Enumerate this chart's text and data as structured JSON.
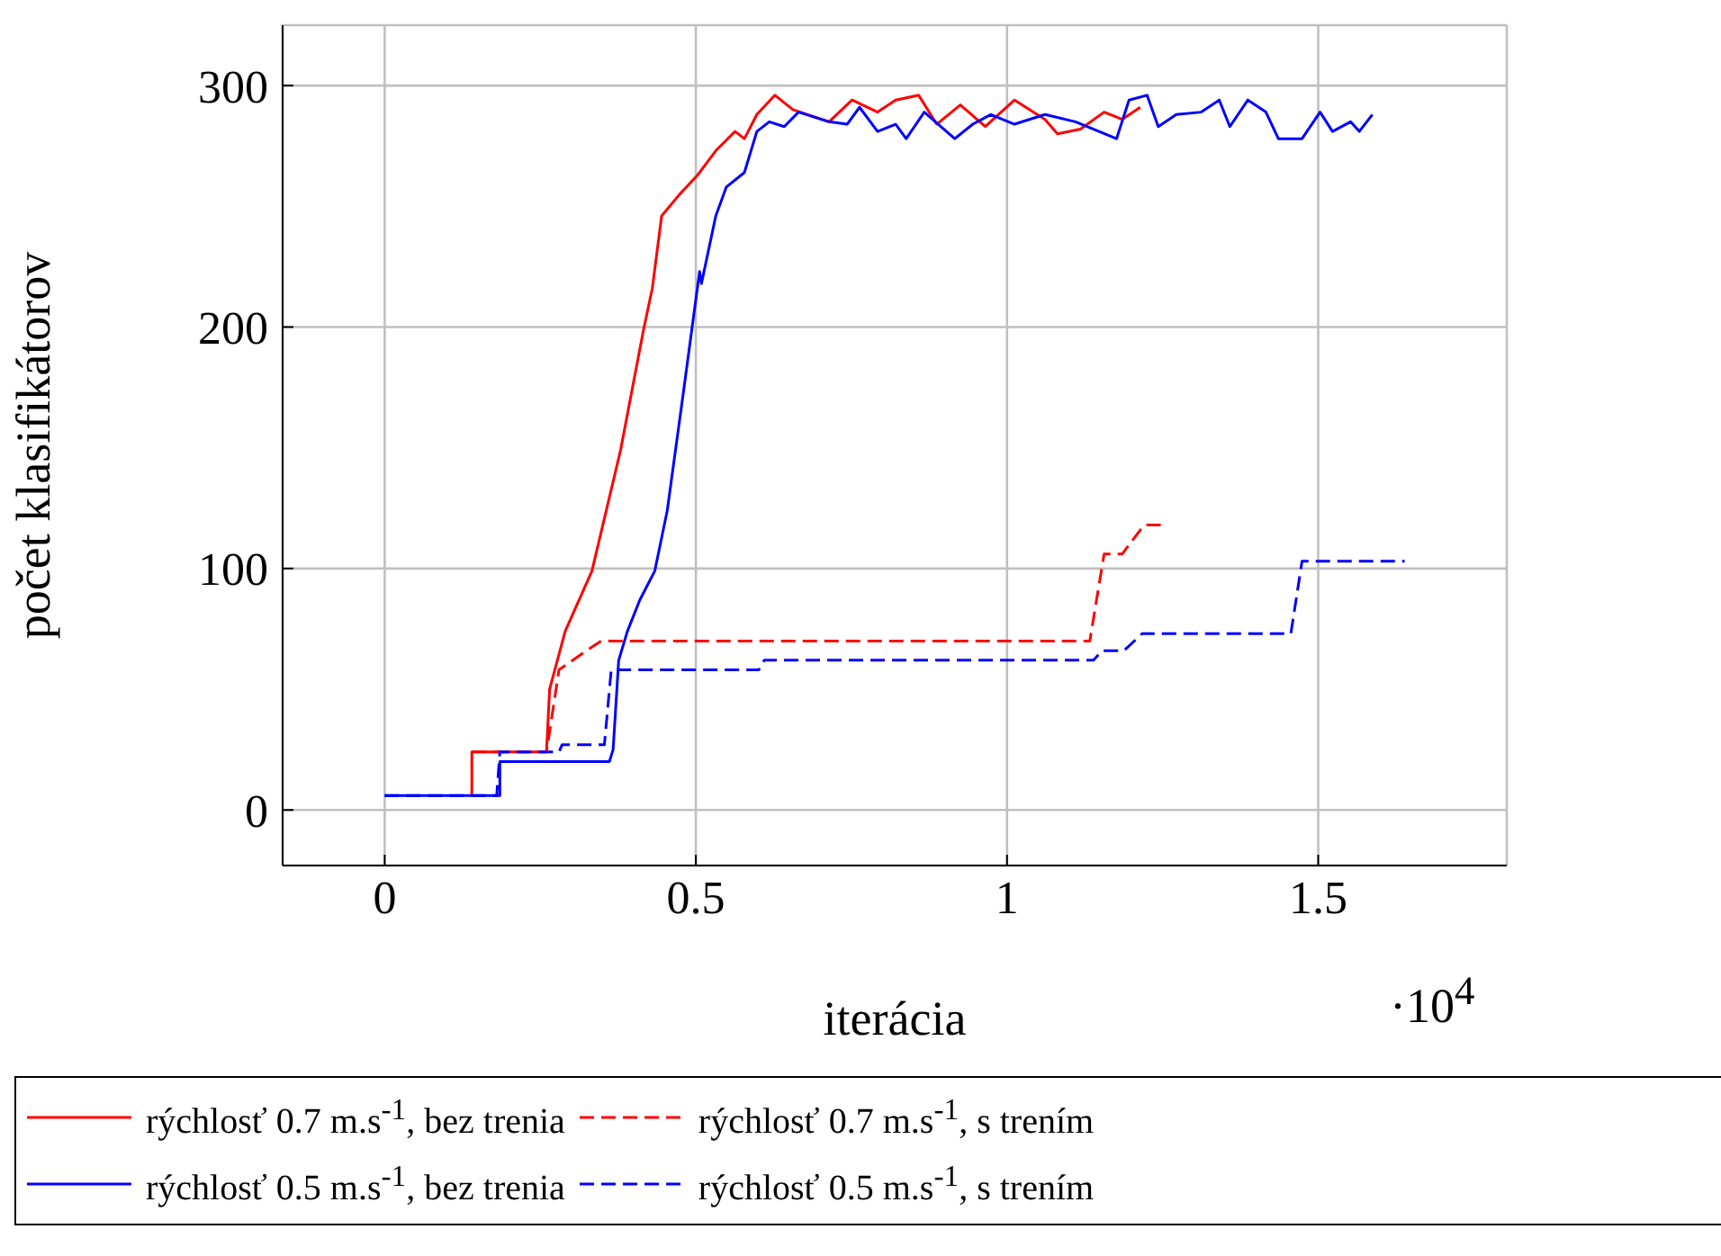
{
  "chart_data": {
    "type": "line",
    "xlabel": "iterácia",
    "ylabel": "počet klasifikátorov",
    "annotations": [
      "·10$^{4}$"
    ],
    "xlim": [
      -0.164,
      1.803
    ],
    "ylim": [
      -23,
      325
    ],
    "xticks": [
      0,
      0.5,
      1,
      1.5
    ],
    "yticks": [
      0,
      100,
      200,
      300
    ],
    "grid": true,
    "legend": "bottom",
    "marker": "none",
    "series": [
      {
        "name": "rýchlosť 0.7 m.s$^{-1}$, bez trenia",
        "color": "#ff0000",
        "line_style": "solid",
        "x": [
          0.14,
          0.14,
          0.26,
          0.265,
          0.29,
          0.333,
          0.379,
          0.416,
          0.43,
          0.445,
          0.474,
          0.503,
          0.532,
          0.563,
          0.578,
          0.598,
          0.627,
          0.656,
          0.714,
          0.751,
          0.792,
          0.821,
          0.858,
          0.887,
          0.925,
          0.965,
          1.012,
          1.061,
          1.081,
          1.118,
          1.156,
          1.185,
          1.214
        ],
        "values": [
          6,
          24,
          24,
          50,
          74,
          99,
          149,
          199,
          216,
          246,
          255,
          263,
          273,
          281,
          278,
          288,
          296,
          290,
          285,
          294,
          289,
          294,
          296,
          284,
          292,
          283,
          294,
          286,
          280,
          282,
          289,
          286,
          291
        ]
      },
      {
        "name": "rýchlosť 0.7 m.s$^{-1}$, s trením",
        "color": "#ff0000",
        "line_style": "dashed",
        "x": [
          0.14,
          0.26,
          0.28,
          0.33,
          0.348,
          1.133,
          1.156,
          1.185,
          1.22,
          1.254
        ],
        "values": [
          24,
          24,
          58,
          67,
          70,
          70,
          106,
          106,
          118,
          118
        ]
      },
      {
        "name": "rýchlosť 0.5 m.s$^{-1}$, bez trenia",
        "color": "#0000ff",
        "line_style": "solid",
        "x": [
          0,
          0.185,
          0.185,
          0.361,
          0.367,
          0.376,
          0.39,
          0.41,
          0.434,
          0.454,
          0.48,
          0.506,
          0.509,
          0.532,
          0.549,
          0.578,
          0.598,
          0.618,
          0.642,
          0.665,
          0.714,
          0.743,
          0.763,
          0.792,
          0.821,
          0.838,
          0.867,
          0.916,
          0.945,
          0.974,
          1.012,
          1.061,
          1.11,
          1.176,
          1.196,
          1.225,
          1.243,
          1.272,
          1.312,
          1.341,
          1.358,
          1.387,
          1.416,
          1.436,
          1.474,
          1.503,
          1.523,
          1.552,
          1.566,
          1.587
        ],
        "values": [
          6,
          6,
          20,
          20,
          25,
          62,
          74,
          87,
          99,
          124,
          173,
          223,
          218,
          246,
          258,
          264,
          281,
          285,
          283,
          289,
          285,
          284,
          291,
          281,
          284,
          278,
          289,
          278,
          284,
          288,
          284,
          288,
          285,
          278,
          294,
          296,
          283,
          288,
          289,
          294,
          283,
          294,
          289,
          278,
          278,
          289,
          281,
          285,
          281,
          288
        ]
      },
      {
        "name": "rýchlosť 0.5 m.s$^{-1}$, s trením",
        "color": "#0000ff",
        "line_style": "dashed",
        "x": [
          0,
          0.18,
          0.185,
          0.28,
          0.285,
          0.353,
          0.364,
          0.601,
          0.61,
          1.139,
          1.153,
          1.188,
          1.217,
          1.456,
          1.474,
          1.639
        ],
        "values": [
          6,
          6,
          24,
          24,
          27,
          27,
          58,
          58,
          62,
          62,
          66,
          66,
          73,
          73,
          103,
          103
        ]
      }
    ]
  }
}
